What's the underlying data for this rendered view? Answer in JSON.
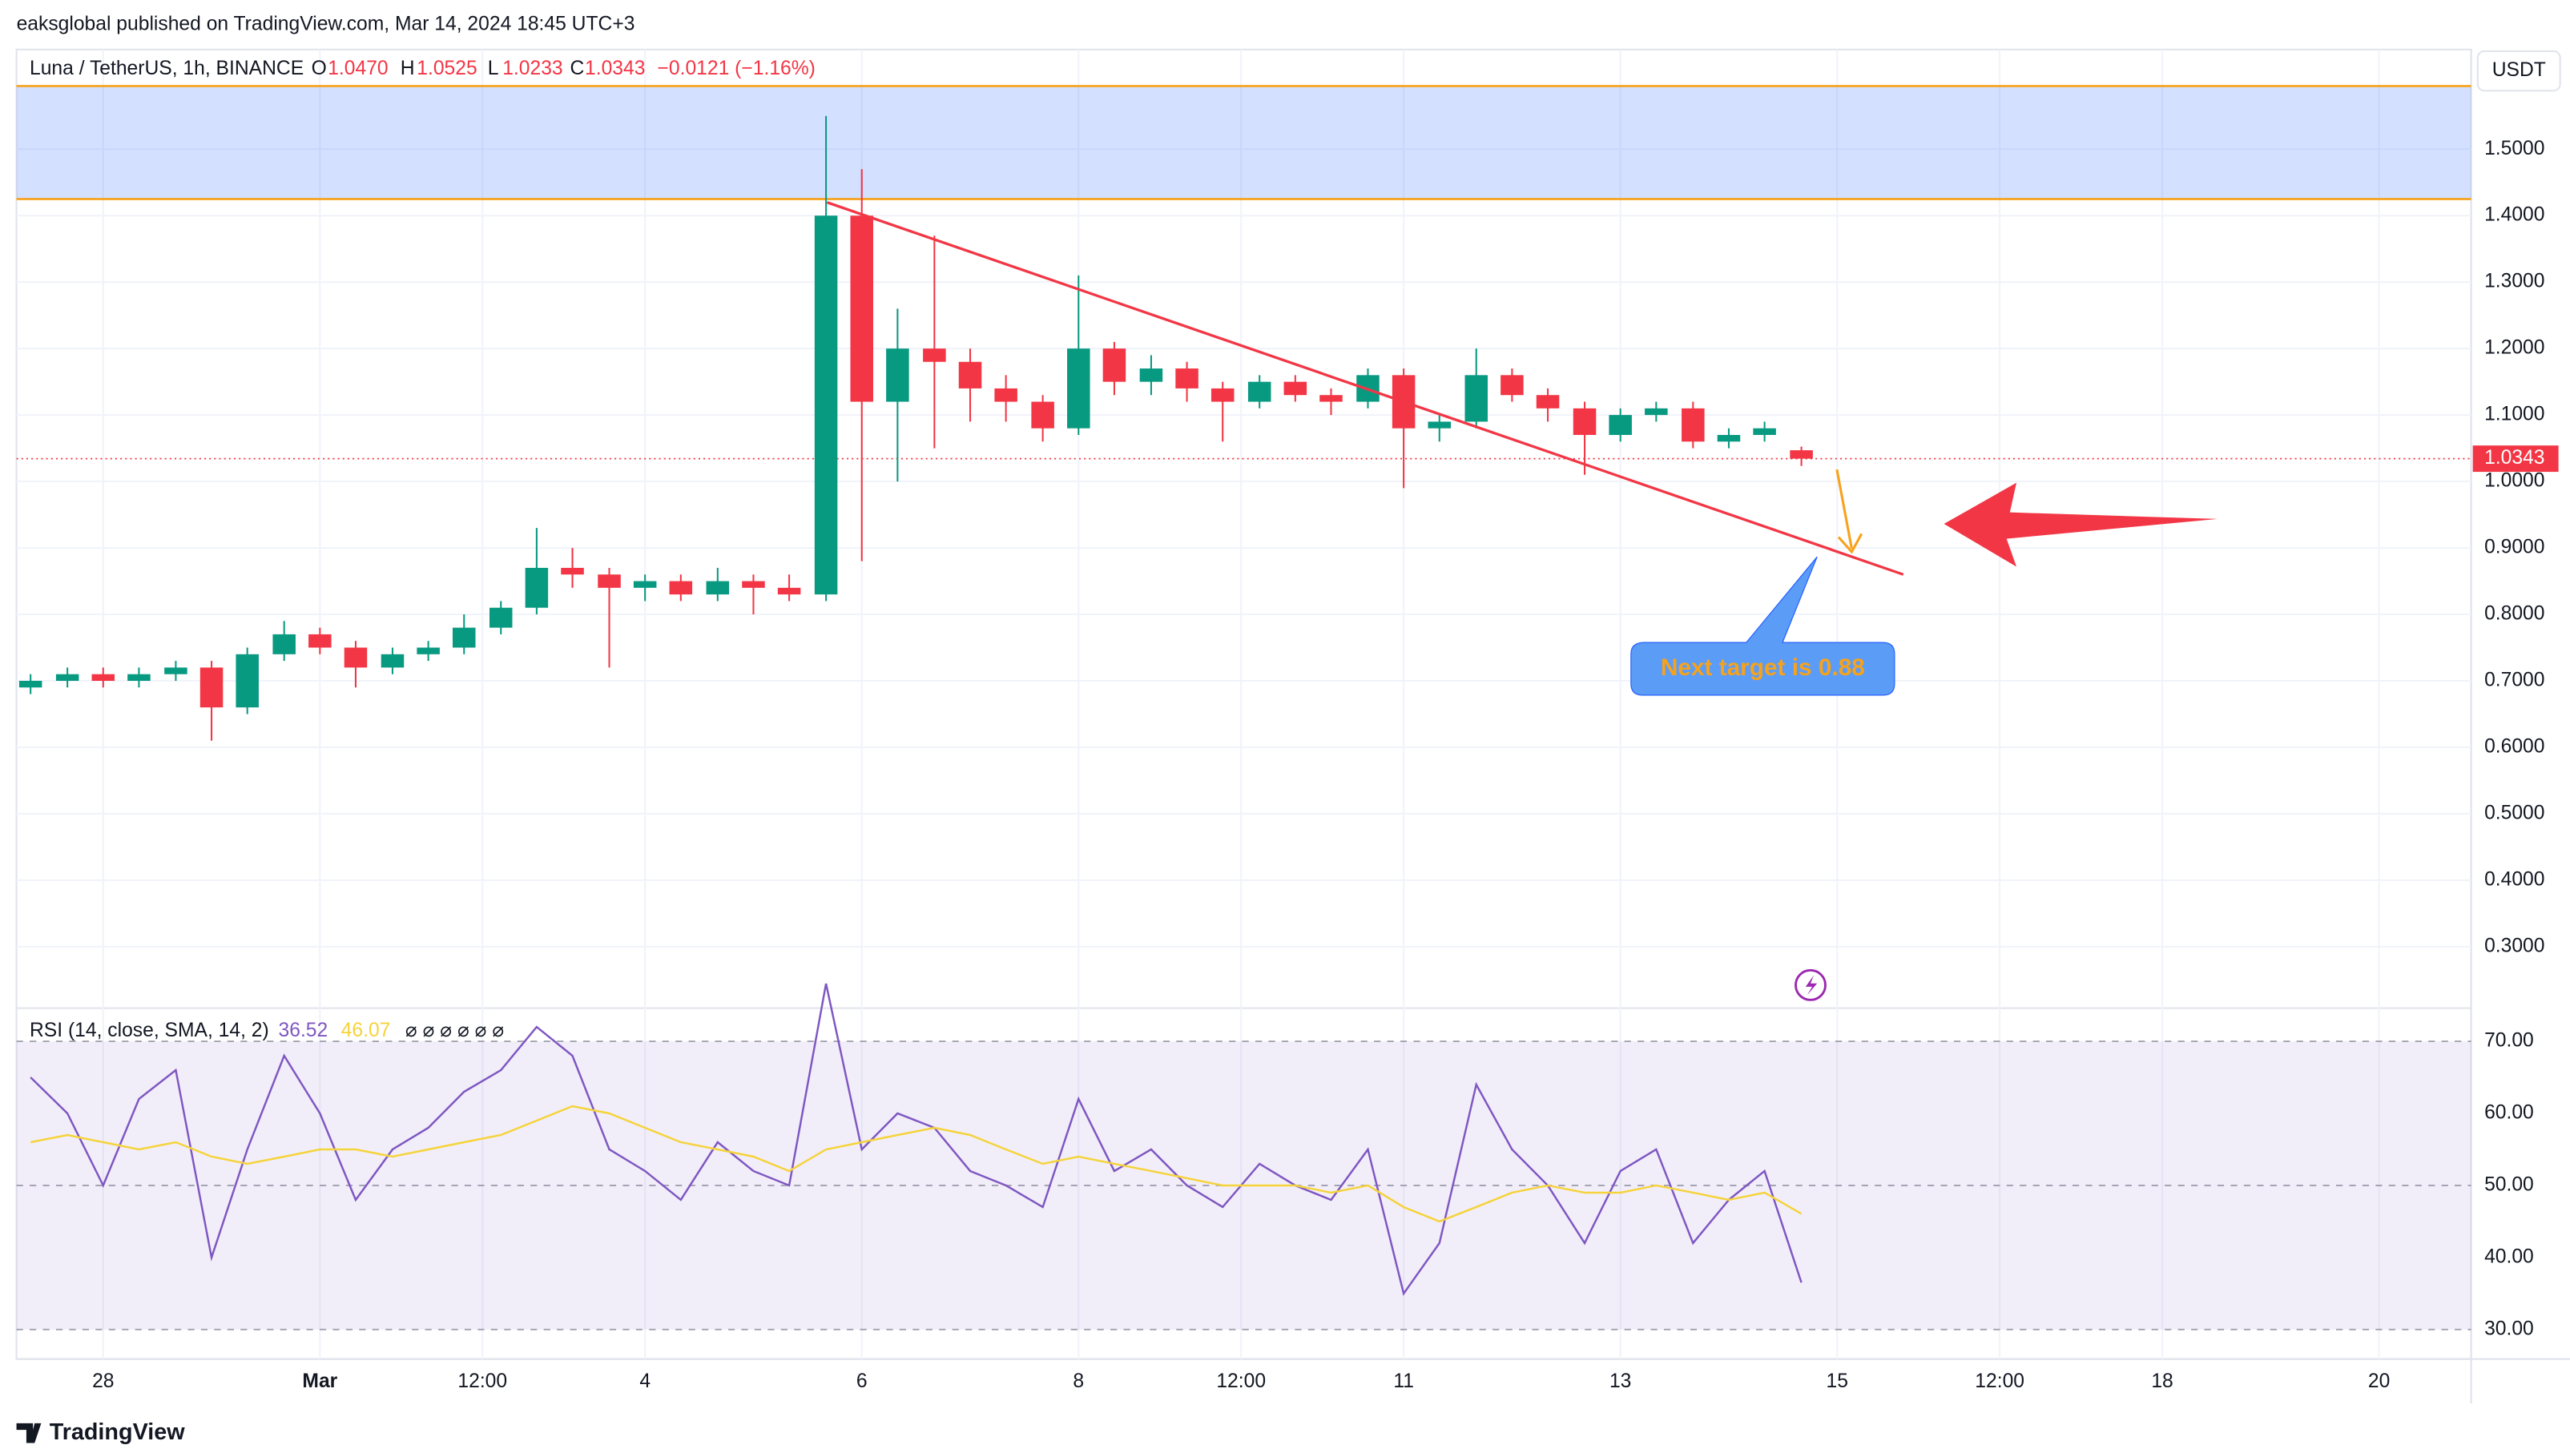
{
  "header": {
    "publisher": "eaksglobal published on TradingView.com, Mar 14, 2024 18:45 UTC+3",
    "symbol": "Luna / TetherUS, 1h, BINANCE",
    "ohlc": [
      {
        "label": "O",
        "value": "1.0470"
      },
      {
        "label": "H",
        "value": "1.0525"
      },
      {
        "label": "L",
        "value": "1.0233"
      },
      {
        "label": "C",
        "value": "1.0343"
      }
    ],
    "change": "−0.0121 (−1.16%)",
    "currency": "USDT",
    "callout": "Next target is 0.88",
    "brand": "TradingView"
  },
  "chart_data": [
    {
      "type": "candlestick",
      "x": [
        58.33,
        58.67,
        59.0,
        59.33,
        59.67,
        60.0,
        60.33,
        60.67,
        61.0,
        61.33,
        61.67,
        62.0,
        62.33,
        62.67,
        63.0,
        63.33,
        63.67,
        64.0,
        64.33,
        64.67,
        65.0,
        65.33,
        65.67,
        66.0,
        66.33,
        66.67,
        67.0,
        67.33,
        67.67,
        68.0,
        68.33,
        68.67,
        69.0,
        69.33,
        69.67,
        70.0,
        70.33,
        70.67,
        71.0,
        71.33,
        71.67,
        72.0,
        72.33,
        72.67,
        73.0,
        73.33,
        73.67,
        74.0,
        74.33,
        74.67
      ],
      "open": [
        0.69,
        0.7,
        0.71,
        0.7,
        0.71,
        0.72,
        0.66,
        0.74,
        0.77,
        0.75,
        0.72,
        0.74,
        0.75,
        0.78,
        0.81,
        0.87,
        0.86,
        0.84,
        0.85,
        0.83,
        0.85,
        0.84,
        0.83,
        1.4,
        1.12,
        1.2,
        1.18,
        1.14,
        1.12,
        1.08,
        1.2,
        1.15,
        1.17,
        1.14,
        1.12,
        1.15,
        1.13,
        1.12,
        1.16,
        1.08,
        1.09,
        1.16,
        1.13,
        1.11,
        1.07,
        1.1,
        1.11,
        1.06,
        1.07,
        1.047
      ],
      "high": [
        0.71,
        0.72,
        0.72,
        0.72,
        0.73,
        0.73,
        0.75,
        0.79,
        0.78,
        0.76,
        0.75,
        0.76,
        0.8,
        0.82,
        0.93,
        0.9,
        0.87,
        0.86,
        0.86,
        0.87,
        0.86,
        0.86,
        1.55,
        1.47,
        1.26,
        1.37,
        1.2,
        1.16,
        1.13,
        1.31,
        1.21,
        1.19,
        1.18,
        1.15,
        1.16,
        1.16,
        1.14,
        1.17,
        1.17,
        1.1,
        1.2,
        1.17,
        1.14,
        1.12,
        1.11,
        1.12,
        1.12,
        1.08,
        1.09,
        1.0525
      ],
      "low": [
        0.68,
        0.69,
        0.69,
        0.69,
        0.7,
        0.61,
        0.65,
        0.73,
        0.74,
        0.69,
        0.71,
        0.73,
        0.74,
        0.77,
        0.8,
        0.84,
        0.72,
        0.82,
        0.82,
        0.82,
        0.8,
        0.82,
        0.82,
        0.88,
        1.0,
        1.05,
        1.09,
        1.09,
        1.06,
        1.07,
        1.13,
        1.13,
        1.12,
        1.06,
        1.11,
        1.12,
        1.1,
        1.11,
        0.99,
        1.06,
        1.08,
        1.12,
        1.09,
        1.01,
        1.06,
        1.09,
        1.05,
        1.05,
        1.06,
        1.0233
      ],
      "close": [
        0.7,
        0.71,
        0.7,
        0.71,
        0.72,
        0.66,
        0.74,
        0.77,
        0.75,
        0.72,
        0.74,
        0.75,
        0.78,
        0.81,
        0.87,
        0.86,
        0.84,
        0.85,
        0.83,
        0.85,
        0.84,
        0.83,
        1.4,
        1.12,
        1.2,
        1.18,
        1.14,
        1.12,
        1.08,
        1.2,
        1.15,
        1.17,
        1.14,
        1.12,
        1.15,
        1.13,
        1.12,
        1.16,
        1.08,
        1.09,
        1.16,
        1.13,
        1.11,
        1.07,
        1.1,
        1.11,
        1.06,
        1.07,
        1.08,
        1.0343
      ],
      "up_color": "#089981",
      "down_color": "#f23645",
      "xlim": [
        58.2,
        80.85
      ],
      "xticks": [
        {
          "value": 59,
          "label": "28"
        },
        {
          "value": 61,
          "label": "Mar"
        },
        {
          "value": 62.5,
          "label": "12:00"
        },
        {
          "value": 64,
          "label": "4"
        },
        {
          "value": 66,
          "label": "6"
        },
        {
          "value": 68,
          "label": "8"
        },
        {
          "value": 69.5,
          "label": "12:00"
        },
        {
          "value": 71,
          "label": "11"
        },
        {
          "value": 73,
          "label": "13"
        },
        {
          "value": 75,
          "label": "15"
        },
        {
          "value": 76.5,
          "label": "12:00"
        },
        {
          "value": 78,
          "label": "18"
        },
        {
          "value": 80,
          "label": "20"
        }
      ],
      "ylim": [
        0.2,
        1.65
      ],
      "yticks": [
        {
          "value": 0.3,
          "label": "0.3000"
        },
        {
          "value": 0.4,
          "label": "0.4000"
        },
        {
          "value": 0.5,
          "label": "0.5000"
        },
        {
          "value": 0.6,
          "label": "0.6000"
        },
        {
          "value": 0.7,
          "label": "0.7000"
        },
        {
          "value": 0.8,
          "label": "0.8000"
        },
        {
          "value": 0.9,
          "label": "0.9000"
        },
        {
          "value": 1.0,
          "label": "1.0000"
        },
        {
          "value": 1.1,
          "label": "1.1000"
        },
        {
          "value": 1.2,
          "label": "1.2000"
        },
        {
          "value": 1.3,
          "label": "1.3000"
        },
        {
          "value": 1.4,
          "label": "1.4000"
        },
        {
          "value": 1.5,
          "label": "1.5000"
        }
      ],
      "grid": true,
      "zone": [
        1.425,
        1.595
      ],
      "trendline": {
        "x": [
          65.68,
          75.61
        ],
        "y": [
          1.42,
          0.86
        ],
        "color": "#f23645"
      },
      "price_tag": {
        "value": 1.0343,
        "label": "1.0343"
      }
    },
    {
      "type": "line",
      "title": "RSI (14, close, SMA, 14, 2)",
      "legend_values": [
        "36.52",
        "46.07"
      ],
      "legend_na": "⌀ ⌀ ⌀ ⌀ ⌀ ⌀",
      "x": [
        58.33,
        58.67,
        59.0,
        59.33,
        59.67,
        60.0,
        60.33,
        60.67,
        61.0,
        61.33,
        61.67,
        62.0,
        62.33,
        62.67,
        63.0,
        63.33,
        63.67,
        64.0,
        64.33,
        64.67,
        65.0,
        65.33,
        65.67,
        66.0,
        66.33,
        66.67,
        67.0,
        67.33,
        67.67,
        68.0,
        68.33,
        68.67,
        69.0,
        69.33,
        69.67,
        70.0,
        70.33,
        70.67,
        71.0,
        71.33,
        71.67,
        72.0,
        72.33,
        72.67,
        73.0,
        73.33,
        73.67,
        74.0,
        74.33,
        74.67
      ],
      "series": [
        {
          "color": "#7e57c2",
          "values": [
            65,
            60,
            50,
            62,
            66,
            40,
            55,
            68,
            60,
            48,
            55,
            58,
            63,
            66,
            72,
            68,
            55,
            52,
            48,
            56,
            52,
            50,
            78,
            55,
            60,
            58,
            52,
            50,
            47,
            62,
            52,
            55,
            50,
            47,
            53,
            50,
            48,
            55,
            35,
            42,
            64,
            55,
            50,
            42,
            52,
            55,
            42,
            48,
            52,
            36.52
          ]
        },
        {
          "color": "#f5d33b",
          "values": [
            56,
            57,
            56,
            55,
            56,
            54,
            53,
            54,
            55,
            55,
            54,
            55,
            56,
            57,
            59,
            61,
            60,
            58,
            56,
            55,
            54,
            52,
            55,
            56,
            57,
            58,
            57,
            55,
            53,
            54,
            53,
            52,
            51,
            50,
            50,
            50,
            49,
            50,
            47,
            45,
            47,
            49,
            50,
            49,
            49,
            50,
            49,
            48,
            49,
            46.07
          ]
        }
      ],
      "xlim": [
        58.2,
        80.85
      ],
      "ylim": [
        26.6,
        74.6
      ],
      "yticks": [
        {
          "value": 30,
          "label": "30.00"
        },
        {
          "value": 40,
          "label": "40.00"
        },
        {
          "value": 50,
          "label": "50.00"
        },
        {
          "value": 60,
          "label": "60.00"
        },
        {
          "value": 70,
          "label": "70.00"
        }
      ],
      "band": [
        30,
        70
      ]
    }
  ]
}
